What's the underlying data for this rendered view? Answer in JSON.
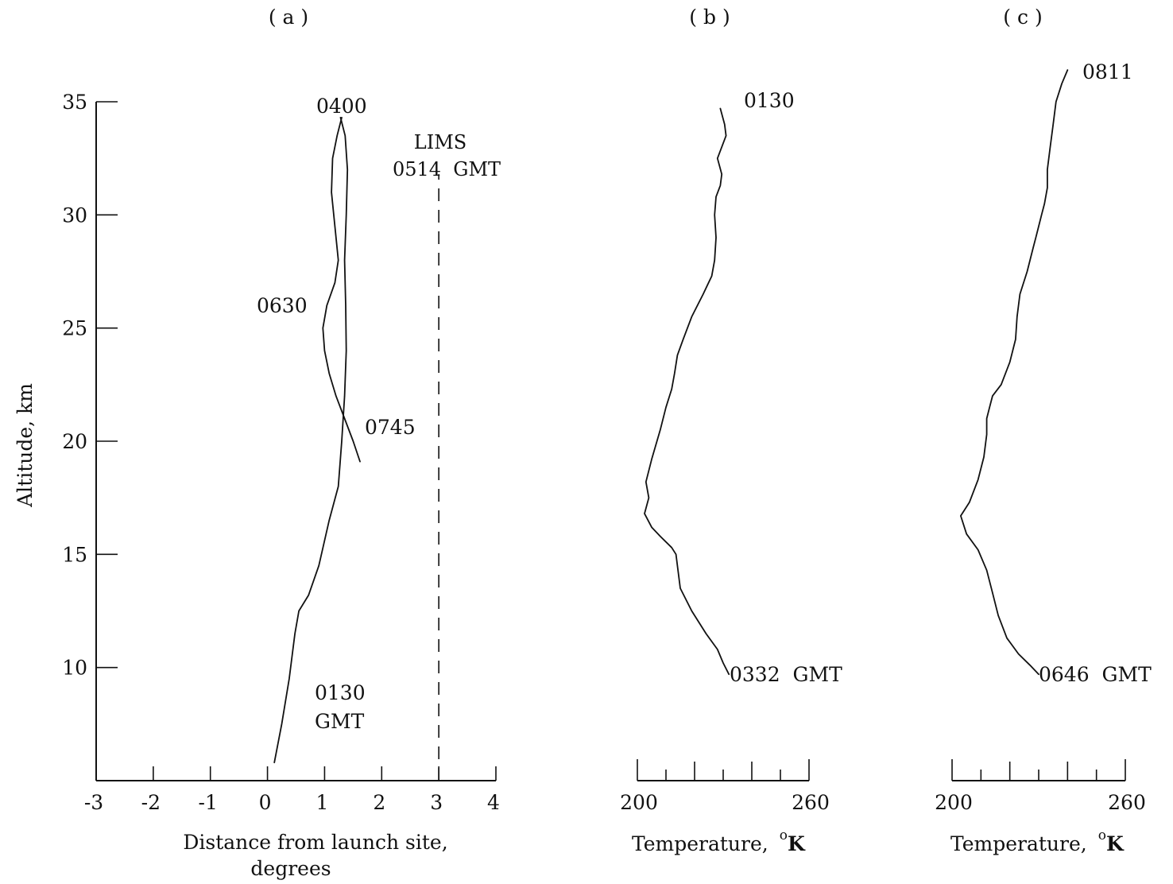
{
  "chart_data": [
    {
      "panel_label": "( a )",
      "type": "line",
      "xlabel_line1": "Distance from launch site,",
      "xlabel_line2": "degrees",
      "ylabel": "Altitude,  km",
      "xlim": [
        -3,
        4
      ],
      "ylim": [
        5,
        35
      ],
      "xticks": [
        "-3",
        "-2",
        "-1",
        "0",
        "1",
        "2",
        "3",
        "4"
      ],
      "yticks": [
        "35",
        "30",
        "25",
        "20",
        "15",
        "10"
      ],
      "series": [
        {
          "id": "track_0130",
          "x": [
            0.12,
            0.25,
            0.38,
            0.48,
            0.55,
            0.72,
            0.9,
            1.08,
            1.24,
            1.3,
            1.35,
            1.38,
            1.37,
            1.35,
            1.38,
            1.4,
            1.36,
            1.28
          ],
          "y": [
            5.8,
            7.5,
            9.5,
            11.5,
            12.5,
            13.2,
            14.5,
            16.5,
            18.0,
            20.0,
            22.0,
            24.0,
            26.0,
            28.0,
            30.0,
            32.0,
            33.5,
            34.3
          ]
        },
        {
          "id": "track_0630",
          "x": [
            1.3,
            1.22,
            1.14,
            1.12,
            1.18,
            1.24,
            1.18,
            1.04,
            0.97,
            1.0,
            1.08,
            1.2,
            1.35,
            1.5,
            1.62
          ],
          "y": [
            34.3,
            33.5,
            32.5,
            31.0,
            29.5,
            28.0,
            27.0,
            26.0,
            25.0,
            24.0,
            23.0,
            22.0,
            21.0,
            20.0,
            19.1
          ]
        }
      ],
      "reference_line": {
        "x": 3,
        "y_from": 5,
        "y_to": 31.8
      },
      "annotations": {
        "label_0400": "0400",
        "label_lims_line1": "LIMS",
        "label_lims_line2": "0514  GMT",
        "label_0630": "0630",
        "label_0745": "0745",
        "label_0130_line1": "0130",
        "label_0130_line2": "GMT"
      }
    },
    {
      "panel_label": "( b )",
      "type": "line",
      "xlabel": "Temperature,",
      "xlabel_unit_sup": "o",
      "xlabel_unit": "K",
      "xlim": [
        200,
        260
      ],
      "xtick_labels": [
        "200",
        "260"
      ],
      "minor_ticks": [
        210,
        220,
        230,
        240,
        250
      ],
      "series": [
        {
          "id": "profile_0130_0332",
          "x": [
            232.0,
            230.0,
            228.0,
            224.0,
            219.0,
            215.0,
            214.0,
            213.5,
            212.0,
            208.0,
            205.0,
            202.5,
            204.0,
            203.0,
            205.0,
            208.0,
            210.0,
            212.0,
            213.0,
            214.0,
            216.0,
            219.0,
            223.0,
            226.0,
            227.0,
            227.5,
            227.0,
            227.5,
            229.0,
            229.5,
            228.0,
            231.0,
            230.5,
            229.0
          ],
          "y": [
            9.7,
            10.2,
            10.8,
            11.5,
            12.5,
            13.5,
            14.5,
            15.0,
            15.3,
            15.8,
            16.2,
            16.8,
            17.5,
            18.2,
            19.2,
            20.5,
            21.5,
            22.3,
            23.0,
            23.8,
            24.5,
            25.5,
            26.5,
            27.3,
            28.0,
            29.0,
            30.0,
            30.8,
            31.3,
            31.8,
            32.5,
            33.5,
            34.0,
            34.7
          ]
        }
      ],
      "annotations": {
        "label_top": "0130",
        "label_bottom": "0332  GMT"
      }
    },
    {
      "panel_label": "( c )",
      "type": "line",
      "xlabel": "Temperature,",
      "xlabel_unit_sup": "o",
      "xlabel_unit": "K",
      "xlim": [
        200,
        260
      ],
      "xtick_labels": [
        "200",
        "260"
      ],
      "minor_ticks": [
        210,
        220,
        230,
        240,
        250
      ],
      "series": [
        {
          "id": "profile_0646_0811",
          "x": [
            230.0,
            227.0,
            223.0,
            219.0,
            216.0,
            214.0,
            212.0,
            209.0,
            205.0,
            203.0,
            206.0,
            209.0,
            211.0,
            212.0,
            212.0,
            213.0,
            214.0,
            217.0,
            220.0,
            222.0,
            222.5,
            223.5,
            226.0,
            228.0,
            229.0,
            230.0,
            231.0,
            232.0,
            233.0,
            233.0,
            234.0,
            235.0,
            236.0,
            238.0,
            240.0
          ],
          "y": [
            9.7,
            10.1,
            10.6,
            11.3,
            12.3,
            13.3,
            14.3,
            15.2,
            15.9,
            16.7,
            17.3,
            18.3,
            19.3,
            20.3,
            21.0,
            21.5,
            22.0,
            22.5,
            23.5,
            24.5,
            25.5,
            26.5,
            27.5,
            28.5,
            29.0,
            29.5,
            30.0,
            30.5,
            31.2,
            32.0,
            33.0,
            34.0,
            35.0,
            35.8,
            36.4
          ]
        }
      ],
      "annotations": {
        "label_top": "0811",
        "label_bottom": "0646  GMT"
      }
    }
  ]
}
